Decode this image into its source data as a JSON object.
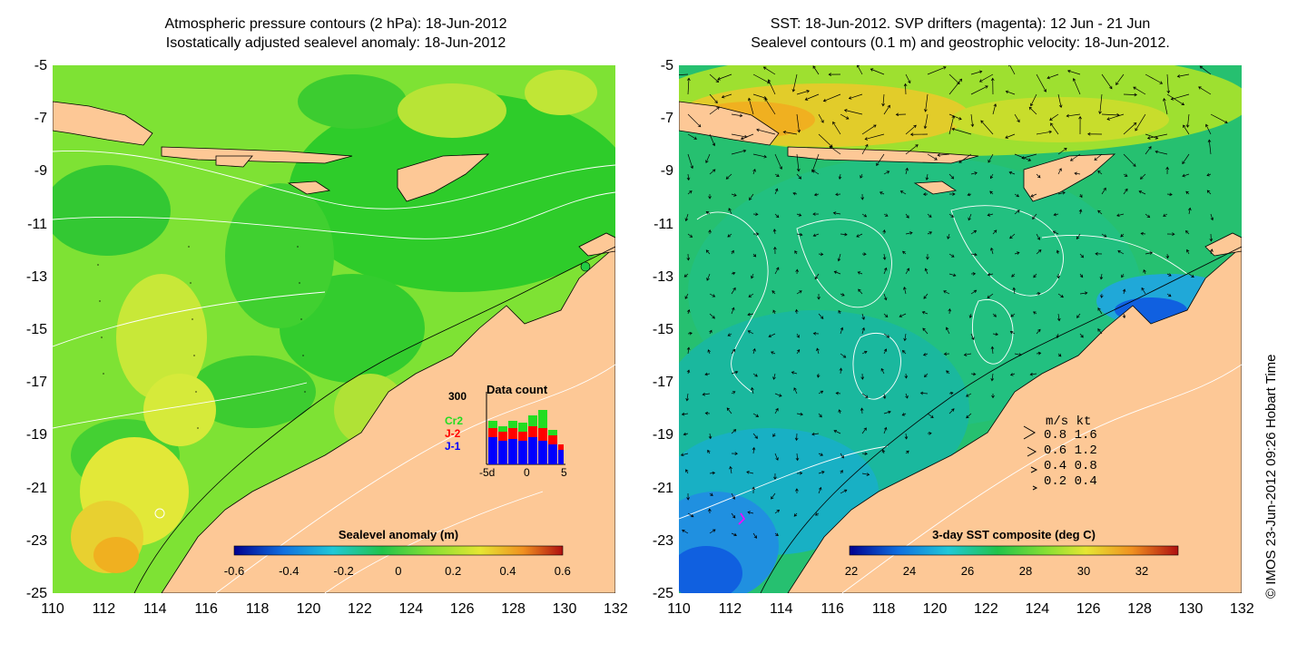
{
  "left_panel": {
    "title_line1": "Atmospheric pressure contours (2 hPa): 18-Jun-2012",
    "title_line2": "Isostatically adjusted sealevel anomaly: 18-Jun-2012",
    "colorbar_title": "Sealevel anomaly (m)",
    "colorbar_ticks": [
      "-0.6",
      "-0.4",
      "-0.2",
      "0",
      "0.2",
      "0.4",
      "0.6"
    ],
    "data_count": {
      "title": "Data count",
      "max_label": "300",
      "series": [
        {
          "name": "Cr2",
          "color": "#22dd22"
        },
        {
          "name": "J-2",
          "color": "#ff0000"
        },
        {
          "name": "J-1",
          "color": "#0000ff"
        }
      ],
      "x_ticks": [
        "-5d",
        "0",
        "5"
      ]
    }
  },
  "right_panel": {
    "title_line1": "SST: 18-Jun-2012. SVP drifters (magenta): 12 Jun - 21 Jun",
    "title_line2": "Sealevel contours (0.1 m) and geostrophic velocity: 18-Jun-2012.",
    "colorbar_title": "3-day SST composite (deg C)",
    "colorbar_ticks": [
      "22",
      "24",
      "26",
      "28",
      "30",
      "32"
    ],
    "velocity_legend": {
      "header": "m/s  kt",
      "rows": [
        "0.8  1.6",
        "0.6  1.2",
        "0.4  0.8",
        "0.2  0.4"
      ]
    }
  },
  "axes": {
    "lat_ticks": [
      "-5",
      "-7",
      "-9",
      "-11",
      "-13",
      "-15",
      "-17",
      "-19",
      "-21",
      "-23",
      "-25"
    ],
    "lon_ticks": [
      "110",
      "112",
      "114",
      "116",
      "118",
      "120",
      "122",
      "124",
      "126",
      "128",
      "130",
      "132"
    ]
  },
  "credit": "© IMOS 23-Jun-2012 09:26 Hobart Time",
  "colors": {
    "land": "#fdc896",
    "ocean_green": "#22cc22",
    "ocean_lightgreen": "#88e633",
    "ocean_yellow": "#e6e633",
    "ocean_orange": "#f0b020",
    "sst_green": "#22c46a",
    "sst_teal": "#15b89a",
    "sst_cyan": "#20b0d0",
    "sst_blue": "#1060e0"
  }
}
